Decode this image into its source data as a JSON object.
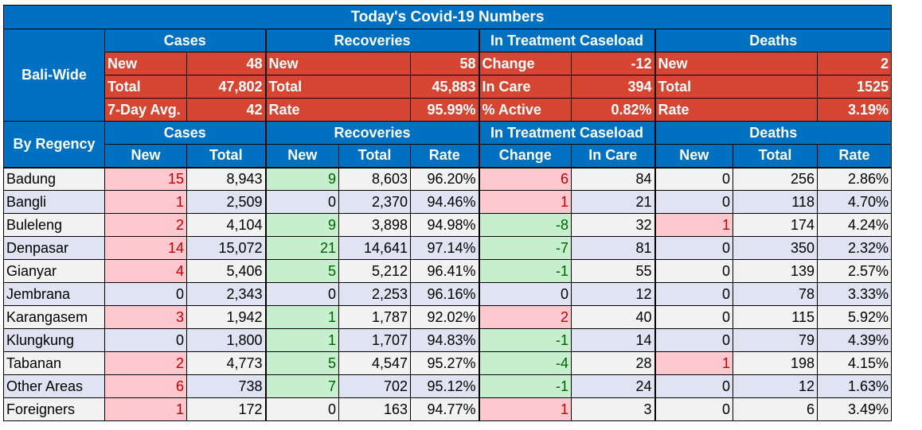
{
  "title": "Today's Covid-19 Numbers",
  "bali_wide": {
    "label": "Bali-Wide",
    "groups": [
      "Cases",
      "Recoveries",
      "In Treatment Caseload",
      "Deaths"
    ],
    "rows": [
      [
        [
          "New",
          "48"
        ],
        [
          "New",
          "58"
        ],
        [
          "Change",
          "-12"
        ],
        [
          "New",
          "2"
        ]
      ],
      [
        [
          "Total",
          "47,802"
        ],
        [
          "Total",
          "45,883"
        ],
        [
          "In Care",
          "394"
        ],
        [
          "Total",
          "1525"
        ]
      ],
      [
        [
          "7-Day Avg.",
          "42"
        ],
        [
          "Rate",
          "95.99%"
        ],
        [
          "% Active",
          "0.82%"
        ],
        [
          "Rate",
          "3.19%"
        ]
      ]
    ]
  },
  "by_regency": {
    "label": "By Regency",
    "groups": [
      "Cases",
      "Recoveries",
      "In Treatment Caseload",
      "Deaths"
    ],
    "columns": [
      "New",
      "Total",
      "New",
      "Total",
      "Rate",
      "Change",
      "In Care",
      "New",
      "Total",
      "Rate"
    ],
    "rows": [
      {
        "name": "Badung",
        "values": [
          "15",
          "8,943",
          "9",
          "8,603",
          "96.20%",
          "6",
          "84",
          "0",
          "256",
          "2.86%"
        ]
      },
      {
        "name": "Bangli",
        "values": [
          "1",
          "2,509",
          "0",
          "2,370",
          "94.46%",
          "1",
          "21",
          "0",
          "118",
          "4.70%"
        ]
      },
      {
        "name": "Buleleng",
        "values": [
          "2",
          "4,104",
          "9",
          "3,898",
          "94.98%",
          "-8",
          "32",
          "1",
          "174",
          "4.24%"
        ]
      },
      {
        "name": "Denpasar",
        "values": [
          "14",
          "15,072",
          "21",
          "14,641",
          "97.14%",
          "-7",
          "81",
          "0",
          "350",
          "2.32%"
        ]
      },
      {
        "name": "Gianyar",
        "values": [
          "4",
          "5,406",
          "5",
          "5,212",
          "96.41%",
          "-1",
          "55",
          "0",
          "139",
          "2.57%"
        ]
      },
      {
        "name": "Jembrana",
        "values": [
          "0",
          "2,343",
          "0",
          "2,253",
          "96.16%",
          "0",
          "12",
          "0",
          "78",
          "3.33%"
        ]
      },
      {
        "name": "Karangasem",
        "values": [
          "3",
          "1,942",
          "1",
          "1,787",
          "92.02%",
          "2",
          "40",
          "0",
          "115",
          "5.92%"
        ]
      },
      {
        "name": "Klungkung",
        "values": [
          "0",
          "1,800",
          "1",
          "1,707",
          "94.83%",
          "-1",
          "14",
          "0",
          "79",
          "4.39%"
        ]
      },
      {
        "name": "Tabanan",
        "values": [
          "2",
          "4,773",
          "5",
          "4,547",
          "95.27%",
          "-4",
          "28",
          "1",
          "198",
          "4.15%"
        ]
      },
      {
        "name": "Other Areas",
        "values": [
          "6",
          "738",
          "7",
          "702",
          "95.12%",
          "-1",
          "24",
          "0",
          "12",
          "1.63%"
        ]
      },
      {
        "name": "Foreigners",
        "values": [
          "1",
          "172",
          "0",
          "163",
          "94.77%",
          "1",
          "3",
          "0",
          "6",
          "3.49%"
        ]
      }
    ]
  },
  "colors": {
    "header_blue": "#0070c0",
    "summary_red": "#d64532",
    "highlight_red_bg": "#ffc7ce",
    "highlight_red_text": "#c00000",
    "highlight_green_bg": "#c6efce",
    "highlight_green_text": "#006100",
    "row_band_a": "#f2f2f2",
    "row_band_b": "#dfe3f2"
  }
}
